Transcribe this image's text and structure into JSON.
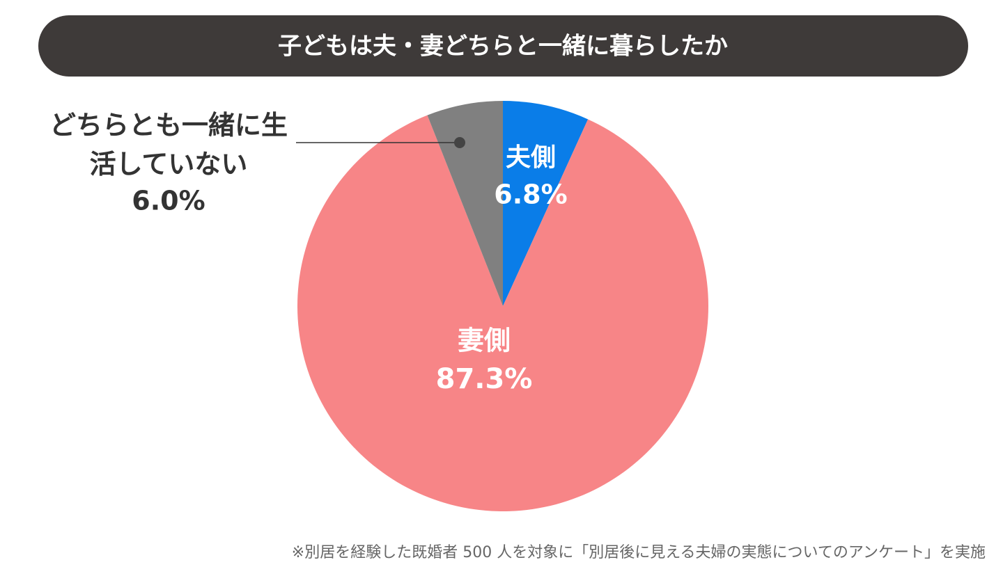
{
  "chart_data": {
    "type": "pie",
    "title": "子どもは夫・妻どちらと一緒に暮らしたか",
    "categories": [
      "夫側",
      "妻側",
      "どちらとも一緒に生活していない"
    ],
    "values": [
      6.8,
      87.3,
      6.0
    ],
    "value_labels": [
      "6.8%",
      "87.3%",
      "6.0%"
    ],
    "colors": [
      "#0a7de8",
      "#f78587",
      "#808080"
    ],
    "note": "※別居を経験した既婚者 500 人を対象に「別居後に見える夫婦の実態についてのアンケート」を実施"
  }
}
